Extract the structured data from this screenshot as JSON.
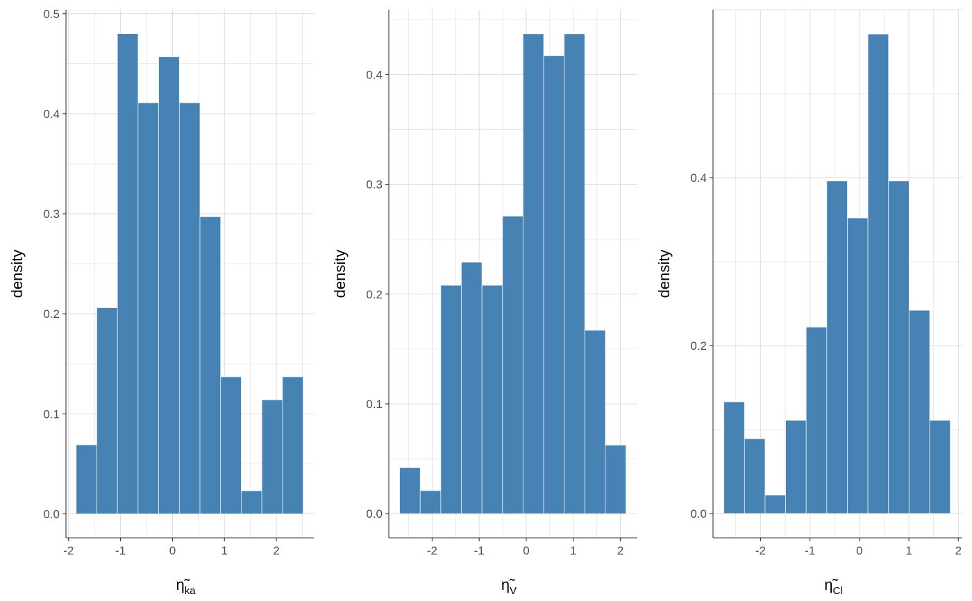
{
  "colors": {
    "bar_fill": "#4682B4",
    "bar_edge": "#E8EEF4",
    "grid": "#DCDCDC",
    "axis": "#333333"
  },
  "chart_data": [
    {
      "type": "bar",
      "subtype": "histogram",
      "xlabel": {
        "main": "η̃",
        "sub": "ka"
      },
      "ylabel": "density",
      "bin_start": -1.853,
      "bin_width": 0.397,
      "values": [
        0.069,
        0.206,
        0.48,
        0.411,
        0.457,
        0.411,
        0.297,
        0.137,
        0.023,
        0.114,
        0.137
      ],
      "xlim": [
        -2.05,
        2.72
      ],
      "ylim": [
        -0.024,
        0.504
      ],
      "xticks": [
        -2,
        -1,
        0,
        1,
        2
      ],
      "xtick_labels": [
        "-2",
        "-1",
        "0",
        "1",
        "2"
      ],
      "yticks": [
        0,
        0.1,
        0.2,
        0.3,
        0.4,
        0.5
      ],
      "ytick_labels": [
        "0.0",
        "0.1",
        "0.2",
        "0.3",
        "0.4",
        "0.5"
      ],
      "grid": true
    },
    {
      "type": "bar",
      "subtype": "histogram",
      "xlabel": {
        "main": "η̃",
        "sub": "V"
      },
      "ylabel": "density",
      "bin_start": -2.69,
      "bin_width": 0.437,
      "values": [
        0.042,
        0.021,
        0.208,
        0.229,
        0.208,
        0.271,
        0.437,
        0.417,
        0.437,
        0.167,
        0.0625
      ],
      "xlim": [
        -2.92,
        2.36
      ],
      "ylim": [
        -0.022,
        0.459
      ],
      "xticks": [
        -2,
        -1,
        0,
        1,
        2
      ],
      "xtick_labels": [
        "-2",
        "-1",
        "0",
        "1",
        "2"
      ],
      "yticks": [
        0,
        0.1,
        0.2,
        0.3,
        0.4
      ],
      "ytick_labels": [
        "0.0",
        "0.1",
        "0.2",
        "0.3",
        "0.4"
      ],
      "grid": true
    },
    {
      "type": "bar",
      "subtype": "histogram",
      "xlabel": {
        "main": "η̃",
        "sub": "Cl"
      },
      "ylabel": "density",
      "bin_start": -2.74,
      "bin_width": 0.416,
      "values": [
        0.133,
        0.089,
        0.022,
        0.111,
        0.222,
        0.396,
        0.352,
        0.571,
        0.396,
        0.242,
        0.111
      ],
      "xlim": [
        -2.96,
        2.08
      ],
      "ylim": [
        -0.029,
        0.6
      ],
      "xticks": [
        -2,
        -1,
        0,
        1,
        2
      ],
      "xtick_labels": [
        "-2",
        "-1",
        "0",
        "1",
        "2"
      ],
      "yticks": [
        0,
        0.2,
        0.4
      ],
      "ytick_labels": [
        "0.0",
        "0.2",
        "0.4"
      ],
      "grid": true
    }
  ]
}
